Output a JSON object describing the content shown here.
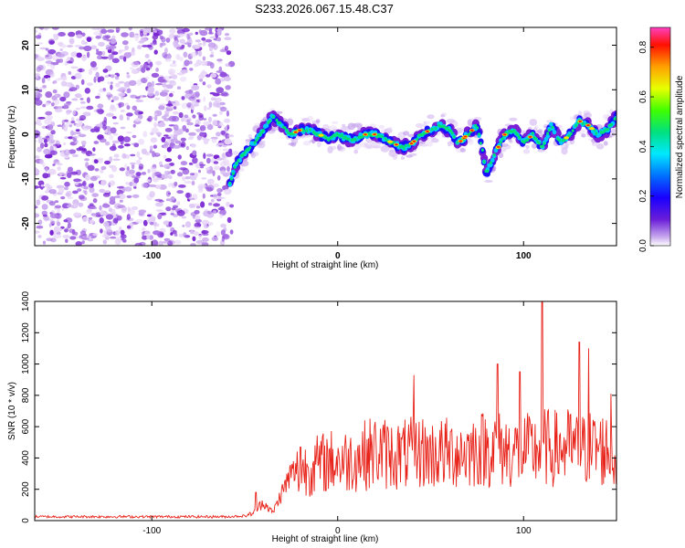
{
  "title": "S233.2026.067.15.48.C37",
  "colors": {
    "background": "#ffffff",
    "axes": "#000000",
    "snr_line": "#e8231a",
    "spectrum_low": "#c8a0f0",
    "spectrum_mid": "#00d8ff",
    "spectrum_high": "#ff0000"
  },
  "chart_data": [
    {
      "type": "heatmap",
      "name": "spectrogram",
      "xlabel": "Height of straight line (km)",
      "ylabel": "Frequency (Hz)",
      "xlim": [
        -163,
        150
      ],
      "ylim": [
        -25,
        24
      ],
      "xticks": [
        -100,
        0,
        100
      ],
      "xtick_labels": [
        "-100",
        "0",
        "100"
      ],
      "yticks": [
        20,
        10,
        0,
        -10,
        -20
      ],
      "ytick_labels": [
        "20",
        "10",
        "0",
        "-10",
        "-20"
      ],
      "noise_region_x": [
        -163,
        -57
      ],
      "ridge": {
        "x": [
          -58,
          -55,
          -50,
          -45,
          -40,
          -35,
          -30,
          -25,
          -20,
          -15,
          -10,
          -5,
          0,
          5,
          10,
          15,
          20,
          25,
          30,
          35,
          40,
          45,
          50,
          55,
          60,
          65,
          70,
          75,
          78,
          80,
          85,
          90,
          95,
          100,
          105,
          110,
          115,
          120,
          125,
          130,
          135,
          140,
          145,
          150
        ],
        "freq": [
          -11,
          -7,
          -4,
          -2,
          1,
          4,
          2,
          0,
          1,
          1,
          0,
          -1,
          0,
          -1,
          -1,
          0,
          0,
          -1,
          -2,
          -3,
          -2,
          0,
          1,
          2,
          1,
          -2,
          0,
          2,
          -4,
          -9,
          -4,
          0,
          1,
          -2,
          0,
          -3,
          2,
          -2,
          0,
          3,
          2,
          0,
          1,
          4
        ]
      },
      "colorbar": {
        "label": "Normalized spectral amplitude",
        "range": [
          0.0,
          0.88
        ],
        "ticks": [
          0.0,
          0.2,
          0.4,
          0.6,
          0.8
        ],
        "tick_labels": [
          "0.0",
          "0.2",
          "0.4",
          "0.6",
          "0.8"
        ]
      }
    },
    {
      "type": "line",
      "name": "snr",
      "xlabel": "Height of straight line (km)",
      "ylabel": "SNR (10 * v/v)",
      "xlim": [
        -163,
        150
      ],
      "ylim": [
        0,
        1400
      ],
      "xticks": [
        -100,
        0,
        100
      ],
      "xtick_labels": [
        "-100",
        "0",
        "100"
      ],
      "yticks": [
        0,
        200,
        400,
        600,
        800,
        1000,
        1200,
        1400
      ],
      "ytick_labels": [
        "0",
        "200",
        "400",
        "600",
        "800",
        "1000",
        "1200",
        "1400"
      ],
      "series": [
        {
          "name": "SNR",
          "x": [
            -163,
            -140,
            -120,
            -100,
            -80,
            -60,
            -50,
            -45,
            -40,
            -35,
            -30,
            -25,
            -20,
            -15,
            -10,
            -5,
            0,
            5,
            10,
            15,
            20,
            25,
            30,
            35,
            40,
            45,
            50,
            55,
            60,
            65,
            70,
            75,
            80,
            85,
            90,
            95,
            100,
            105,
            110,
            115,
            120,
            125,
            130,
            135,
            140,
            145,
            150
          ],
          "values": [
            25,
            25,
            25,
            25,
            25,
            25,
            30,
            50,
            120,
            50,
            180,
            300,
            320,
            340,
            360,
            380,
            380,
            380,
            400,
            420,
            440,
            430,
            420,
            420,
            430,
            440,
            420,
            430,
            430,
            440,
            440,
            460,
            460,
            460,
            450,
            440,
            450,
            440,
            470,
            460,
            460,
            470,
            440,
            460,
            460,
            450,
            420
          ],
          "spikes": [
            {
              "x": -44,
              "value": 180
            },
            {
              "x": -20,
              "value": 470
            },
            {
              "x": 41,
              "value": 930
            },
            {
              "x": 86,
              "value": 1000
            },
            {
              "x": 98,
              "value": 950
            },
            {
              "x": 110,
              "value": 1440
            },
            {
              "x": 130,
              "value": 1140
            },
            {
              "x": 135,
              "value": 1100
            },
            {
              "x": 147,
              "value": 810
            }
          ]
        }
      ]
    }
  ]
}
